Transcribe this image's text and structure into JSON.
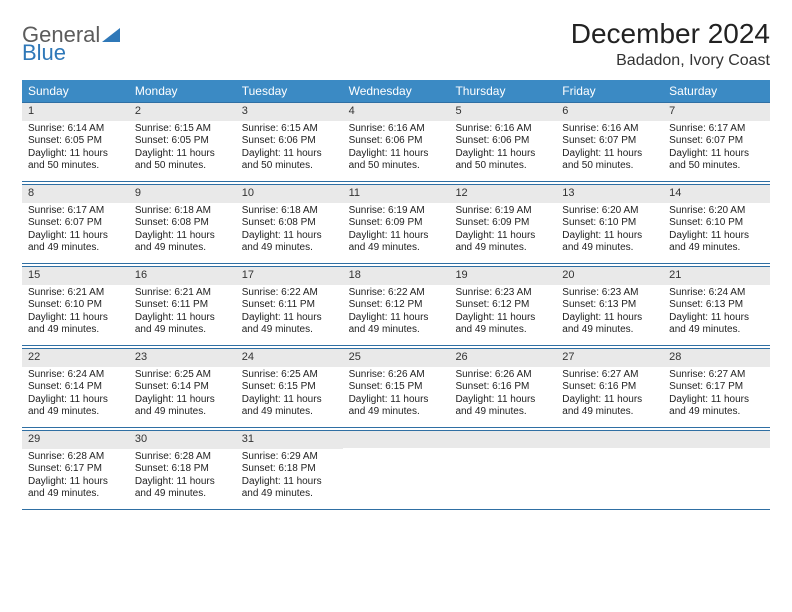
{
  "logo": {
    "part1": "General",
    "part2": "Blue"
  },
  "title": "December 2024",
  "location": "Badadon, Ivory Coast",
  "colors": {
    "header_bg": "#3b8ac4",
    "header_text": "#ffffff",
    "daynum_bg": "#e9e9e9",
    "border": "#2f6fa3",
    "logo_gray": "#5c5c5c",
    "logo_blue": "#2f78b8"
  },
  "layout": {
    "cols": 7,
    "rows": 5,
    "cell_fontsize_pt": 8,
    "header_fontsize_pt": 9,
    "title_fontsize_pt": 21
  },
  "day_names": [
    "Sunday",
    "Monday",
    "Tuesday",
    "Wednesday",
    "Thursday",
    "Friday",
    "Saturday"
  ],
  "weeks": [
    [
      {
        "n": "1",
        "sr": "Sunrise: 6:14 AM",
        "ss": "Sunset: 6:05 PM",
        "d1": "Daylight: 11 hours",
        "d2": "and 50 minutes."
      },
      {
        "n": "2",
        "sr": "Sunrise: 6:15 AM",
        "ss": "Sunset: 6:05 PM",
        "d1": "Daylight: 11 hours",
        "d2": "and 50 minutes."
      },
      {
        "n": "3",
        "sr": "Sunrise: 6:15 AM",
        "ss": "Sunset: 6:06 PM",
        "d1": "Daylight: 11 hours",
        "d2": "and 50 minutes."
      },
      {
        "n": "4",
        "sr": "Sunrise: 6:16 AM",
        "ss": "Sunset: 6:06 PM",
        "d1": "Daylight: 11 hours",
        "d2": "and 50 minutes."
      },
      {
        "n": "5",
        "sr": "Sunrise: 6:16 AM",
        "ss": "Sunset: 6:06 PM",
        "d1": "Daylight: 11 hours",
        "d2": "and 50 minutes."
      },
      {
        "n": "6",
        "sr": "Sunrise: 6:16 AM",
        "ss": "Sunset: 6:07 PM",
        "d1": "Daylight: 11 hours",
        "d2": "and 50 minutes."
      },
      {
        "n": "7",
        "sr": "Sunrise: 6:17 AM",
        "ss": "Sunset: 6:07 PM",
        "d1": "Daylight: 11 hours",
        "d2": "and 50 minutes."
      }
    ],
    [
      {
        "n": "8",
        "sr": "Sunrise: 6:17 AM",
        "ss": "Sunset: 6:07 PM",
        "d1": "Daylight: 11 hours",
        "d2": "and 49 minutes."
      },
      {
        "n": "9",
        "sr": "Sunrise: 6:18 AM",
        "ss": "Sunset: 6:08 PM",
        "d1": "Daylight: 11 hours",
        "d2": "and 49 minutes."
      },
      {
        "n": "10",
        "sr": "Sunrise: 6:18 AM",
        "ss": "Sunset: 6:08 PM",
        "d1": "Daylight: 11 hours",
        "d2": "and 49 minutes."
      },
      {
        "n": "11",
        "sr": "Sunrise: 6:19 AM",
        "ss": "Sunset: 6:09 PM",
        "d1": "Daylight: 11 hours",
        "d2": "and 49 minutes."
      },
      {
        "n": "12",
        "sr": "Sunrise: 6:19 AM",
        "ss": "Sunset: 6:09 PM",
        "d1": "Daylight: 11 hours",
        "d2": "and 49 minutes."
      },
      {
        "n": "13",
        "sr": "Sunrise: 6:20 AM",
        "ss": "Sunset: 6:10 PM",
        "d1": "Daylight: 11 hours",
        "d2": "and 49 minutes."
      },
      {
        "n": "14",
        "sr": "Sunrise: 6:20 AM",
        "ss": "Sunset: 6:10 PM",
        "d1": "Daylight: 11 hours",
        "d2": "and 49 minutes."
      }
    ],
    [
      {
        "n": "15",
        "sr": "Sunrise: 6:21 AM",
        "ss": "Sunset: 6:10 PM",
        "d1": "Daylight: 11 hours",
        "d2": "and 49 minutes."
      },
      {
        "n": "16",
        "sr": "Sunrise: 6:21 AM",
        "ss": "Sunset: 6:11 PM",
        "d1": "Daylight: 11 hours",
        "d2": "and 49 minutes."
      },
      {
        "n": "17",
        "sr": "Sunrise: 6:22 AM",
        "ss": "Sunset: 6:11 PM",
        "d1": "Daylight: 11 hours",
        "d2": "and 49 minutes."
      },
      {
        "n": "18",
        "sr": "Sunrise: 6:22 AM",
        "ss": "Sunset: 6:12 PM",
        "d1": "Daylight: 11 hours",
        "d2": "and 49 minutes."
      },
      {
        "n": "19",
        "sr": "Sunrise: 6:23 AM",
        "ss": "Sunset: 6:12 PM",
        "d1": "Daylight: 11 hours",
        "d2": "and 49 minutes."
      },
      {
        "n": "20",
        "sr": "Sunrise: 6:23 AM",
        "ss": "Sunset: 6:13 PM",
        "d1": "Daylight: 11 hours",
        "d2": "and 49 minutes."
      },
      {
        "n": "21",
        "sr": "Sunrise: 6:24 AM",
        "ss": "Sunset: 6:13 PM",
        "d1": "Daylight: 11 hours",
        "d2": "and 49 minutes."
      }
    ],
    [
      {
        "n": "22",
        "sr": "Sunrise: 6:24 AM",
        "ss": "Sunset: 6:14 PM",
        "d1": "Daylight: 11 hours",
        "d2": "and 49 minutes."
      },
      {
        "n": "23",
        "sr": "Sunrise: 6:25 AM",
        "ss": "Sunset: 6:14 PM",
        "d1": "Daylight: 11 hours",
        "d2": "and 49 minutes."
      },
      {
        "n": "24",
        "sr": "Sunrise: 6:25 AM",
        "ss": "Sunset: 6:15 PM",
        "d1": "Daylight: 11 hours",
        "d2": "and 49 minutes."
      },
      {
        "n": "25",
        "sr": "Sunrise: 6:26 AM",
        "ss": "Sunset: 6:15 PM",
        "d1": "Daylight: 11 hours",
        "d2": "and 49 minutes."
      },
      {
        "n": "26",
        "sr": "Sunrise: 6:26 AM",
        "ss": "Sunset: 6:16 PM",
        "d1": "Daylight: 11 hours",
        "d2": "and 49 minutes."
      },
      {
        "n": "27",
        "sr": "Sunrise: 6:27 AM",
        "ss": "Sunset: 6:16 PM",
        "d1": "Daylight: 11 hours",
        "d2": "and 49 minutes."
      },
      {
        "n": "28",
        "sr": "Sunrise: 6:27 AM",
        "ss": "Sunset: 6:17 PM",
        "d1": "Daylight: 11 hours",
        "d2": "and 49 minutes."
      }
    ],
    [
      {
        "n": "29",
        "sr": "Sunrise: 6:28 AM",
        "ss": "Sunset: 6:17 PM",
        "d1": "Daylight: 11 hours",
        "d2": "and 49 minutes."
      },
      {
        "n": "30",
        "sr": "Sunrise: 6:28 AM",
        "ss": "Sunset: 6:18 PM",
        "d1": "Daylight: 11 hours",
        "d2": "and 49 minutes."
      },
      {
        "n": "31",
        "sr": "Sunrise: 6:29 AM",
        "ss": "Sunset: 6:18 PM",
        "d1": "Daylight: 11 hours",
        "d2": "and 49 minutes."
      },
      null,
      null,
      null,
      null
    ]
  ]
}
